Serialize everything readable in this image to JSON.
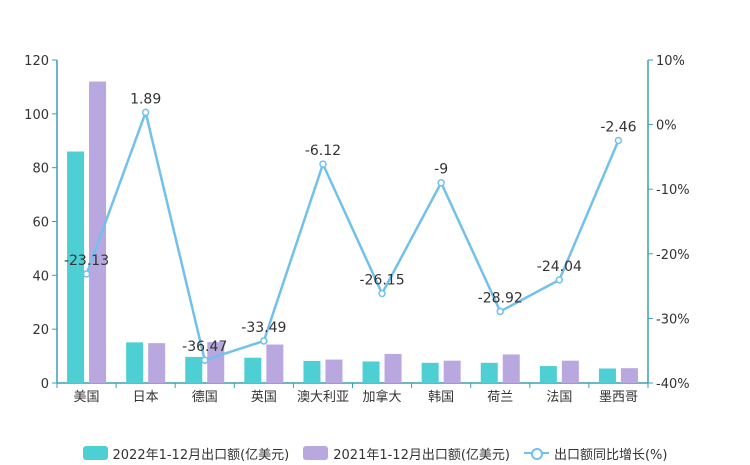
{
  "chart_data": {
    "type": "bar",
    "categories": [
      "美国",
      "日本",
      "德国",
      "英国",
      "澳大利亚",
      "加拿大",
      "韩国",
      "荷兰",
      "法国",
      "墨西哥"
    ],
    "series": [
      {
        "name": "2022年1-12月出口额(亿美元)",
        "type": "bar",
        "axis": "left",
        "color": "#4ecfd4",
        "values": [
          86.0,
          15.1,
          9.7,
          9.4,
          8.2,
          8.0,
          7.5,
          7.5,
          6.3,
          5.4
        ]
      },
      {
        "name": "2021年1-12月出口额(亿美元)",
        "type": "bar",
        "axis": "left",
        "color": "#b9a7e0",
        "values": [
          112.0,
          14.8,
          15.2,
          14.3,
          8.7,
          10.8,
          8.3,
          10.6,
          8.3,
          5.5
        ]
      },
      {
        "name": "出口额同比增长(%)",
        "type": "line",
        "axis": "right",
        "color": "#72c1ec",
        "values": [
          -23.13,
          1.89,
          -36.47,
          -33.49,
          -6.12,
          -26.15,
          -9,
          -28.92,
          -24.04,
          -2.46
        ],
        "labels": [
          "-23.13",
          "1.89",
          "-36.47",
          "-33.49",
          "-6.12",
          "-26.15",
          "-9",
          "-28.92",
          "-24.04",
          "-2.46"
        ]
      }
    ],
    "y_left": {
      "min": 0,
      "max": 120,
      "ticks": [
        0,
        20,
        40,
        60,
        80,
        100,
        120
      ],
      "tick_labels": [
        "0",
        "20",
        "40",
        "60",
        "80",
        "100",
        "120"
      ]
    },
    "y_right": {
      "min": -40,
      "max": 10,
      "ticks": [
        -40,
        -30,
        -20,
        -10,
        0,
        10
      ],
      "tick_labels": [
        "-40%",
        "-30%",
        "-20%",
        "-10%",
        "0%",
        "10%"
      ]
    },
    "grid": false,
    "legend_position": "bottom"
  },
  "legend": {
    "item1": "2022年1-12月出口额(亿美元)",
    "item2": "2021年1-12月出口额(亿美元)",
    "item3": "出口额同比增长(%)"
  }
}
